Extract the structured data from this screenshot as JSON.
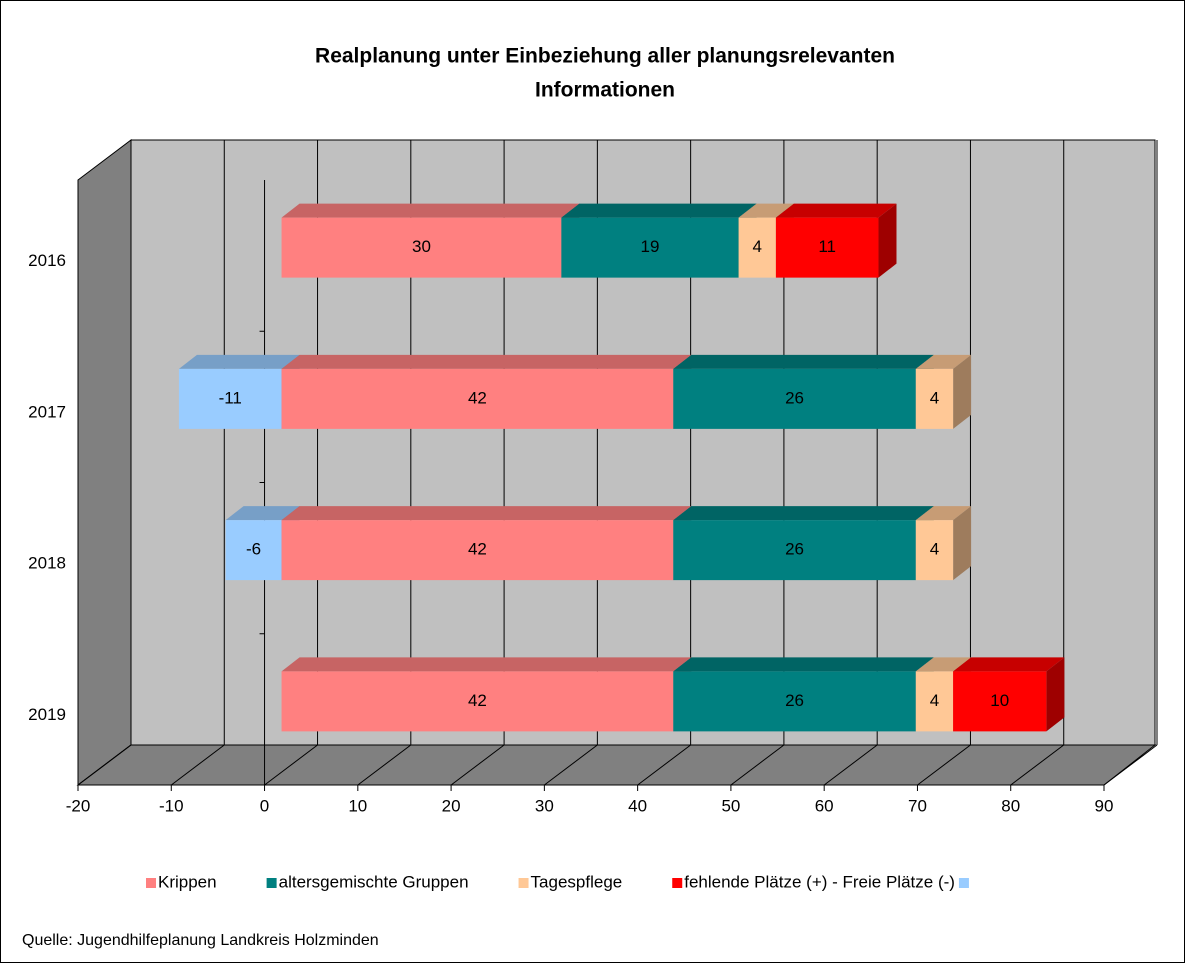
{
  "chart_data": {
    "type": "bar3d_stacked_horizontal",
    "title": [
      "Realplanung unter Einbeziehung aller planungsrelevanten",
      "Informationen"
    ],
    "categories": [
      "2016",
      "2017",
      "2018",
      "2019"
    ],
    "series": [
      {
        "name": "Krippen",
        "color": "#ff8080",
        "values": [
          30,
          42,
          42,
          42
        ]
      },
      {
        "name": "altersgemischte Gruppen",
        "color": "#008080",
        "values": [
          19,
          26,
          26,
          26
        ]
      },
      {
        "name": "Tagespflege",
        "color": "#ffc896",
        "values": [
          4,
          4,
          4,
          4
        ]
      },
      {
        "name": "fehlende Plätze (+) - Freie Plätze (-)",
        "color": "#ff0000",
        "negative_color": "#99ccff",
        "values": [
          11,
          -11,
          -6,
          10
        ]
      }
    ],
    "xlim": [
      -20,
      90
    ],
    "xticks": [
      -20,
      -10,
      0,
      10,
      20,
      30,
      40,
      50,
      60,
      70,
      80,
      90
    ],
    "grid": true,
    "legend": "bottom",
    "source": "Quelle: Jugendhilfeplanung Landkreis Holzminden"
  }
}
